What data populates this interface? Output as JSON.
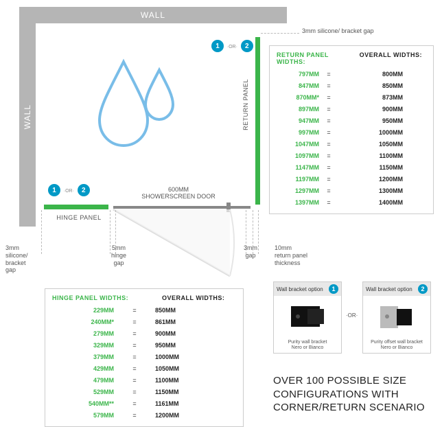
{
  "walls": {
    "top_label": "WALL",
    "left_label": "WALL"
  },
  "colors": {
    "wall": "#b5b5b5",
    "green": "#3bb54a",
    "accent_blue": "#0099c6",
    "drop_stroke": "#79bde8",
    "grey_text": "#555",
    "border": "#cccccc"
  },
  "circles": {
    "one": "1",
    "two": "2",
    "sep": "·OR·"
  },
  "door": {
    "label_line1": "600MM",
    "label_line2": "SHOWERSCREEN DOOR"
  },
  "panels": {
    "hinge_label": "HINGE PANEL",
    "return_label": "RETURN PANEL"
  },
  "annot": {
    "top_right": "3mm silicone/ bracket gap",
    "left_bottom_line1": "3mm",
    "left_bottom_line2": "silicone/",
    "left_bottom_line3": "bracket",
    "left_bottom_line4": "gap",
    "hinge_gap_line1": "5mm",
    "hinge_gap_line2": "hinge",
    "hinge_gap_line3": "gap",
    "door_gap_line1": "3mm",
    "door_gap_line2": "gap",
    "rp_thick_line1": "10mm",
    "rp_thick_line2": "return panel",
    "rp_thick_line3": "thickness"
  },
  "return_table": {
    "head_l": "RETURN PANEL WIDTHS:",
    "head_r": "OVERALL WIDTHS:",
    "rows": [
      {
        "l": "797MM",
        "r": "800MM"
      },
      {
        "l": "847MM",
        "r": "850MM"
      },
      {
        "l": "870MM*",
        "r": "873MM"
      },
      {
        "l": "897MM",
        "r": "900MM"
      },
      {
        "l": "947MM",
        "r": "950MM"
      },
      {
        "l": "997MM",
        "r": "1000MM"
      },
      {
        "l": "1047MM",
        "r": "1050MM"
      },
      {
        "l": "1097MM",
        "r": "1100MM"
      },
      {
        "l": "1147MM",
        "r": "1150MM"
      },
      {
        "l": "1197MM",
        "r": "1200MM"
      },
      {
        "l": "1297MM",
        "r": "1300MM"
      },
      {
        "l": "1397MM",
        "r": "1400MM"
      }
    ]
  },
  "hinge_table": {
    "head_l": "HINGE PANEL WIDTHS:",
    "head_r": "OVERALL WIDTHS:",
    "rows": [
      {
        "l": "229MM",
        "r": "850MM"
      },
      {
        "l": "240MM*",
        "r": "861MM"
      },
      {
        "l": "279MM",
        "r": "900MM"
      },
      {
        "l": "329MM",
        "r": "950MM"
      },
      {
        "l": "379MM",
        "r": "1000MM"
      },
      {
        "l": "429MM",
        "r": "1050MM"
      },
      {
        "l": "479MM",
        "r": "1100MM"
      },
      {
        "l": "529MM",
        "r": "1150MM"
      },
      {
        "l": "540MM**",
        "r": "1161MM"
      },
      {
        "l": "579MM",
        "r": "1200MM"
      }
    ]
  },
  "brackets": {
    "card1": {
      "title": "Wall bracket option",
      "num": "1",
      "caption_l1": "Purity wall bracket",
      "caption_l2": "Nero or Bianco"
    },
    "card2": {
      "title": "Wall bracket option",
      "num": "2",
      "caption_l1": "Purity offset wall bracket",
      "caption_l2": "Nero or Bianco"
    },
    "sep": "·OR·"
  },
  "big_text": {
    "line1": "OVER 100 POSSIBLE SIZE",
    "line2": "CONFIGURATIONS WITH",
    "line3": "CORNER/RETURN SCENARIO"
  }
}
